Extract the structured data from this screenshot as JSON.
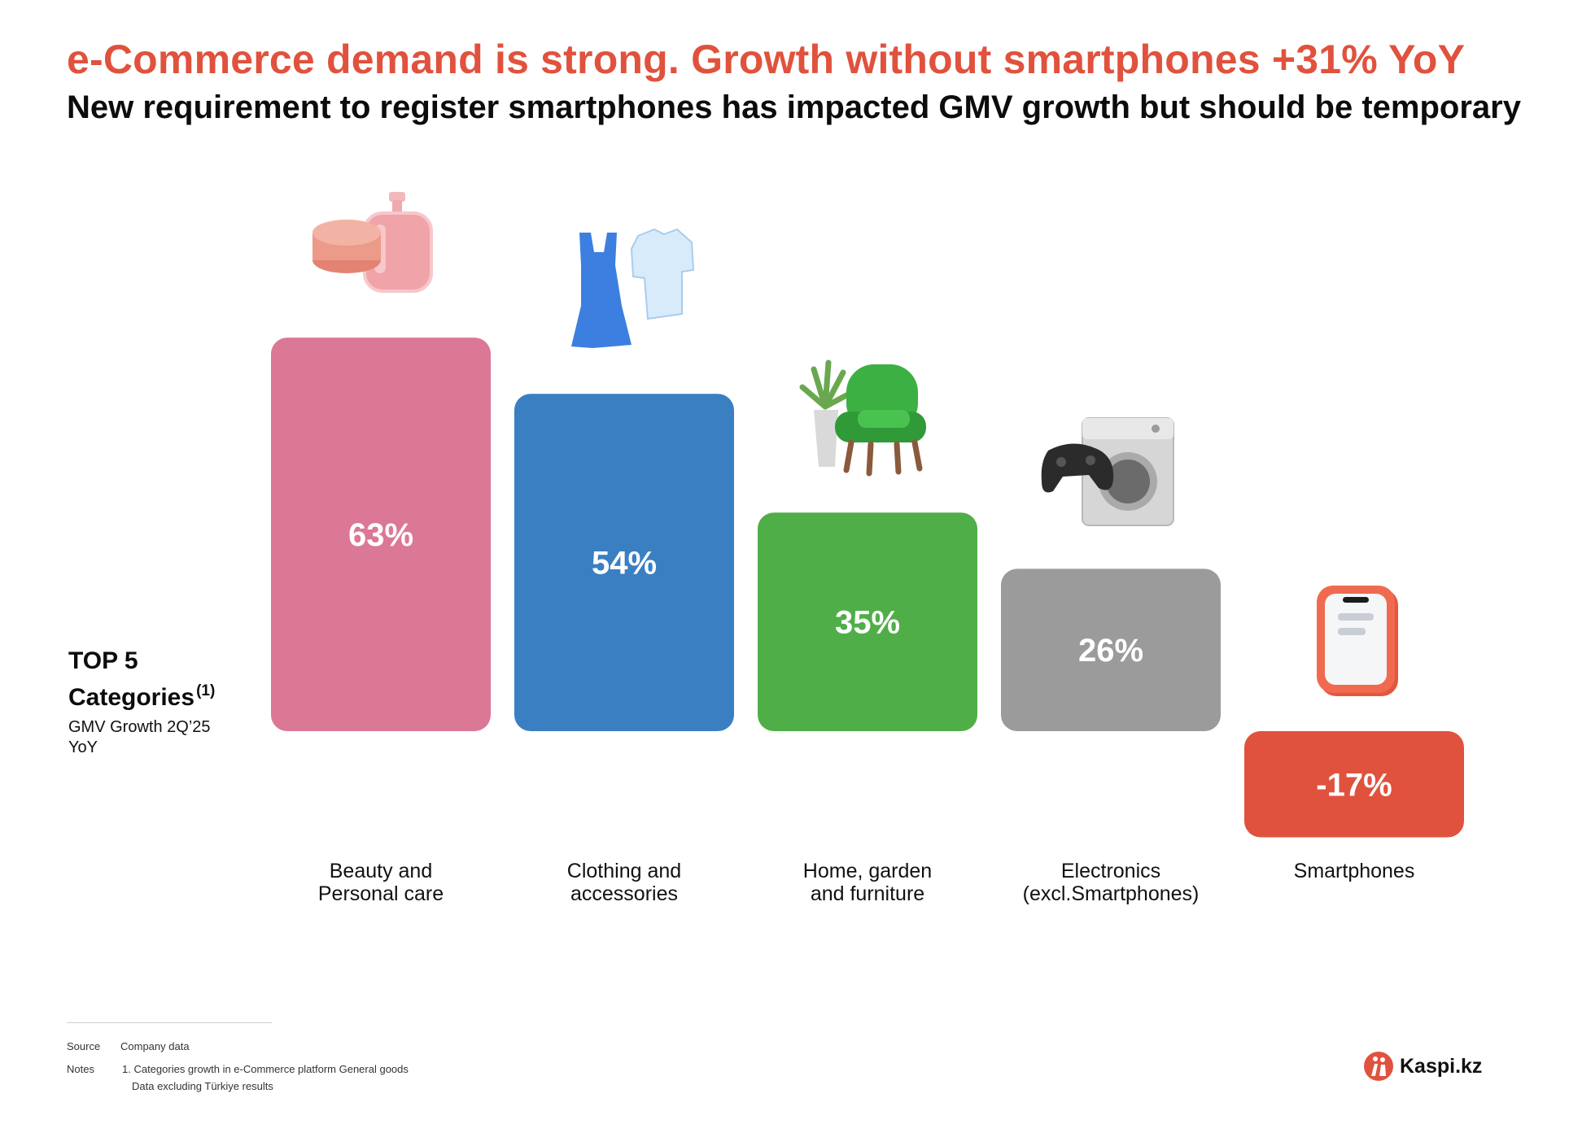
{
  "title": "e-Commerce demand is strong. Growth without smartphones +31% YoY",
  "subtitle": "New requirement to register smartphones has impacted GMV growth but should be temporary",
  "side_label": {
    "line1": "TOP 5",
    "line2": "Categories",
    "footnote_mark": "(1)",
    "metric": "GMV Growth 2Q’25 YoY"
  },
  "chart_data": {
    "type": "bar",
    "categories": [
      [
        "Beauty and",
        "Personal care"
      ],
      [
        "Clothing and",
        "accessories"
      ],
      [
        "Home, garden",
        "and furniture"
      ],
      [
        "Electronics",
        "(excl.Smartphones)"
      ],
      [
        "Smartphones"
      ]
    ],
    "values": [
      63,
      54,
      35,
      26,
      -17
    ],
    "value_labels": [
      "63%",
      "54%",
      "35%",
      "26%",
      "-17%"
    ],
    "colors": [
      "#db7896",
      "#3a7fc2",
      "#50ae48",
      "#9b9b9b",
      "#e0523d"
    ],
    "icons": [
      "cosmetics-icon",
      "clothing-icon",
      "armchair-plant-icon",
      "gamepad-washer-icon",
      "smartphone-icon"
    ],
    "title": "",
    "xlabel": "",
    "ylabel": "",
    "ylim": [
      -17,
      63
    ],
    "grid": false,
    "legend": "none"
  },
  "footer": {
    "source_key": "Source",
    "source_value": "Company data",
    "notes_key": "Notes",
    "notes_lines": [
      "1. Categories growth in e-Commerce platform General goods",
      "Data excluding Türkiye results"
    ]
  },
  "brand": {
    "name": "Kaspi.kz",
    "color": "#e0523d"
  }
}
